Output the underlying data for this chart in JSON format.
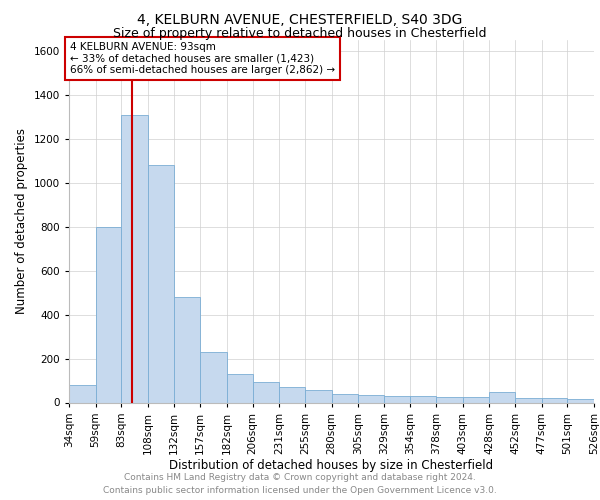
{
  "title": "4, KELBURN AVENUE, CHESTERFIELD, S40 3DG",
  "subtitle": "Size of property relative to detached houses in Chesterfield",
  "xlabel": "Distribution of detached houses by size in Chesterfield",
  "ylabel": "Number of detached properties",
  "bar_color": "#c6d9ee",
  "bar_edge_color": "#7aadd4",
  "grid_color": "#d0d0d0",
  "property_line_x": 93,
  "annotation_text": "4 KELBURN AVENUE: 93sqm\n← 33% of detached houses are smaller (1,423)\n66% of semi-detached houses are larger (2,862) →",
  "annotation_box_color": "#cc0000",
  "footer_line1": "Contains HM Land Registry data © Crown copyright and database right 2024.",
  "footer_line2": "Contains public sector information licensed under the Open Government Licence v3.0.",
  "bin_edges": [
    34,
    59,
    83,
    108,
    132,
    157,
    182,
    206,
    231,
    255,
    280,
    305,
    329,
    354,
    378,
    403,
    428,
    452,
    477,
    501,
    526
  ],
  "bin_heights": [
    80,
    800,
    1310,
    1080,
    480,
    230,
    130,
    95,
    70,
    55,
    40,
    35,
    30,
    28,
    25,
    24,
    50,
    22,
    20,
    18
  ],
  "ylim": [
    0,
    1650
  ],
  "yticks": [
    0,
    200,
    400,
    600,
    800,
    1000,
    1200,
    1400,
    1600
  ],
  "title_fontsize": 10,
  "subtitle_fontsize": 9,
  "xlabel_fontsize": 8.5,
  "ylabel_fontsize": 8.5,
  "tick_fontsize": 7.5,
  "annot_fontsize": 7.5,
  "footer_fontsize": 6.5
}
